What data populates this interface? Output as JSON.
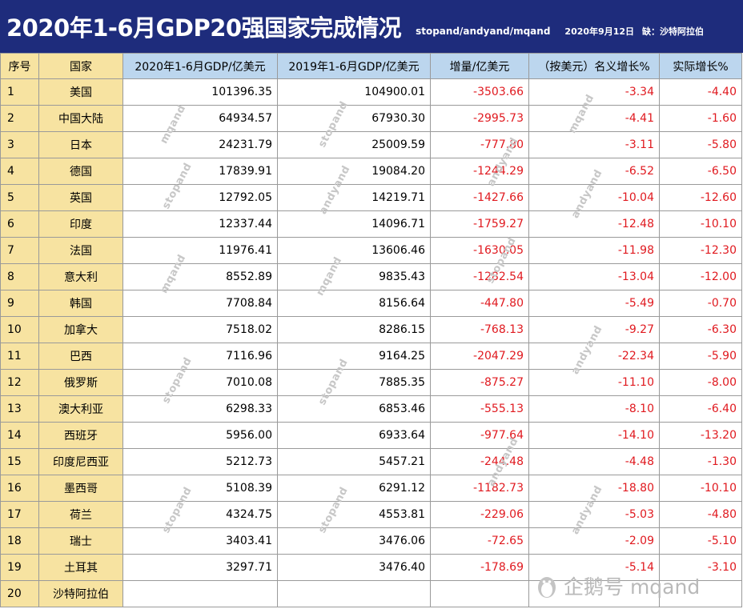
{
  "header": {
    "title": "2020年1-6月GDP20强国家完成情况",
    "subtitle": "stopand/andyand/mqand",
    "date": "2020年9月12日",
    "note": "缺：沙特阿拉伯"
  },
  "table": {
    "columns": [
      "序号",
      "国家",
      "2020年1-6月GDP/亿美元",
      "2019年1-6月GDP/亿美元",
      "增量/亿美元",
      "（按美元）名义增长%",
      "实际增长%"
    ],
    "rows": [
      [
        "1",
        "美国",
        "101396.35",
        "104900.01",
        "-3503.66",
        "-3.34",
        "-4.40"
      ],
      [
        "2",
        "中国大陆",
        "64934.57",
        "67930.30",
        "-2995.73",
        "-4.41",
        "-1.60"
      ],
      [
        "3",
        "日本",
        "24231.79",
        "25009.59",
        "-777.80",
        "-3.11",
        "-5.80"
      ],
      [
        "4",
        "德国",
        "17839.91",
        "19084.20",
        "-1244.29",
        "-6.52",
        "-6.50"
      ],
      [
        "5",
        "英国",
        "12792.05",
        "14219.71",
        "-1427.66",
        "-10.04",
        "-12.60"
      ],
      [
        "6",
        "印度",
        "12337.44",
        "14096.71",
        "-1759.27",
        "-12.48",
        "-10.10"
      ],
      [
        "7",
        "法国",
        "11976.41",
        "13606.46",
        "-1630.05",
        "-11.98",
        "-12.30"
      ],
      [
        "8",
        "意大利",
        "8552.89",
        "9835.43",
        "-1282.54",
        "-13.04",
        "-12.00"
      ],
      [
        "9",
        "韩国",
        "7708.84",
        "8156.64",
        "-447.80",
        "-5.49",
        "-0.70"
      ],
      [
        "10",
        "加拿大",
        "7518.02",
        "8286.15",
        "-768.13",
        "-9.27",
        "-6.30"
      ],
      [
        "11",
        "巴西",
        "7116.96",
        "9164.25",
        "-2047.29",
        "-22.34",
        "-5.90"
      ],
      [
        "12",
        "俄罗斯",
        "7010.08",
        "7885.35",
        "-875.27",
        "-11.10",
        "-8.00"
      ],
      [
        "13",
        "澳大利亚",
        "6298.33",
        "6853.46",
        "-555.13",
        "-8.10",
        "-6.40"
      ],
      [
        "14",
        "西班牙",
        "5956.00",
        "6933.64",
        "-977.64",
        "-14.10",
        "-13.20"
      ],
      [
        "15",
        "印度尼西亚",
        "5212.73",
        "5457.21",
        "-244.48",
        "-4.48",
        "-1.30"
      ],
      [
        "16",
        "墨西哥",
        "5108.39",
        "6291.12",
        "-1182.73",
        "-18.80",
        "-10.10"
      ],
      [
        "17",
        "荷兰",
        "4324.75",
        "4553.81",
        "-229.06",
        "-5.03",
        "-4.80"
      ],
      [
        "18",
        "瑞士",
        "3403.41",
        "3476.06",
        "-72.65",
        "-2.09",
        "-5.10"
      ],
      [
        "19",
        "土耳其",
        "3297.71",
        "3476.40",
        "-178.69",
        "-5.14",
        "-3.10"
      ],
      [
        "20",
        "沙特阿拉伯",
        "",
        "",
        "",
        "",
        ""
      ]
    ]
  },
  "watermarks": [
    "mqand",
    "stopand",
    "andyand"
  ],
  "brand": {
    "icon": "penguin-icon",
    "text": "企鹅号 mqand"
  },
  "colors": {
    "title_bg": "#1e2c7c",
    "header_bg": "#bcd6ee",
    "index_bg": "#f7e3a1",
    "negative": "#e0191f"
  }
}
